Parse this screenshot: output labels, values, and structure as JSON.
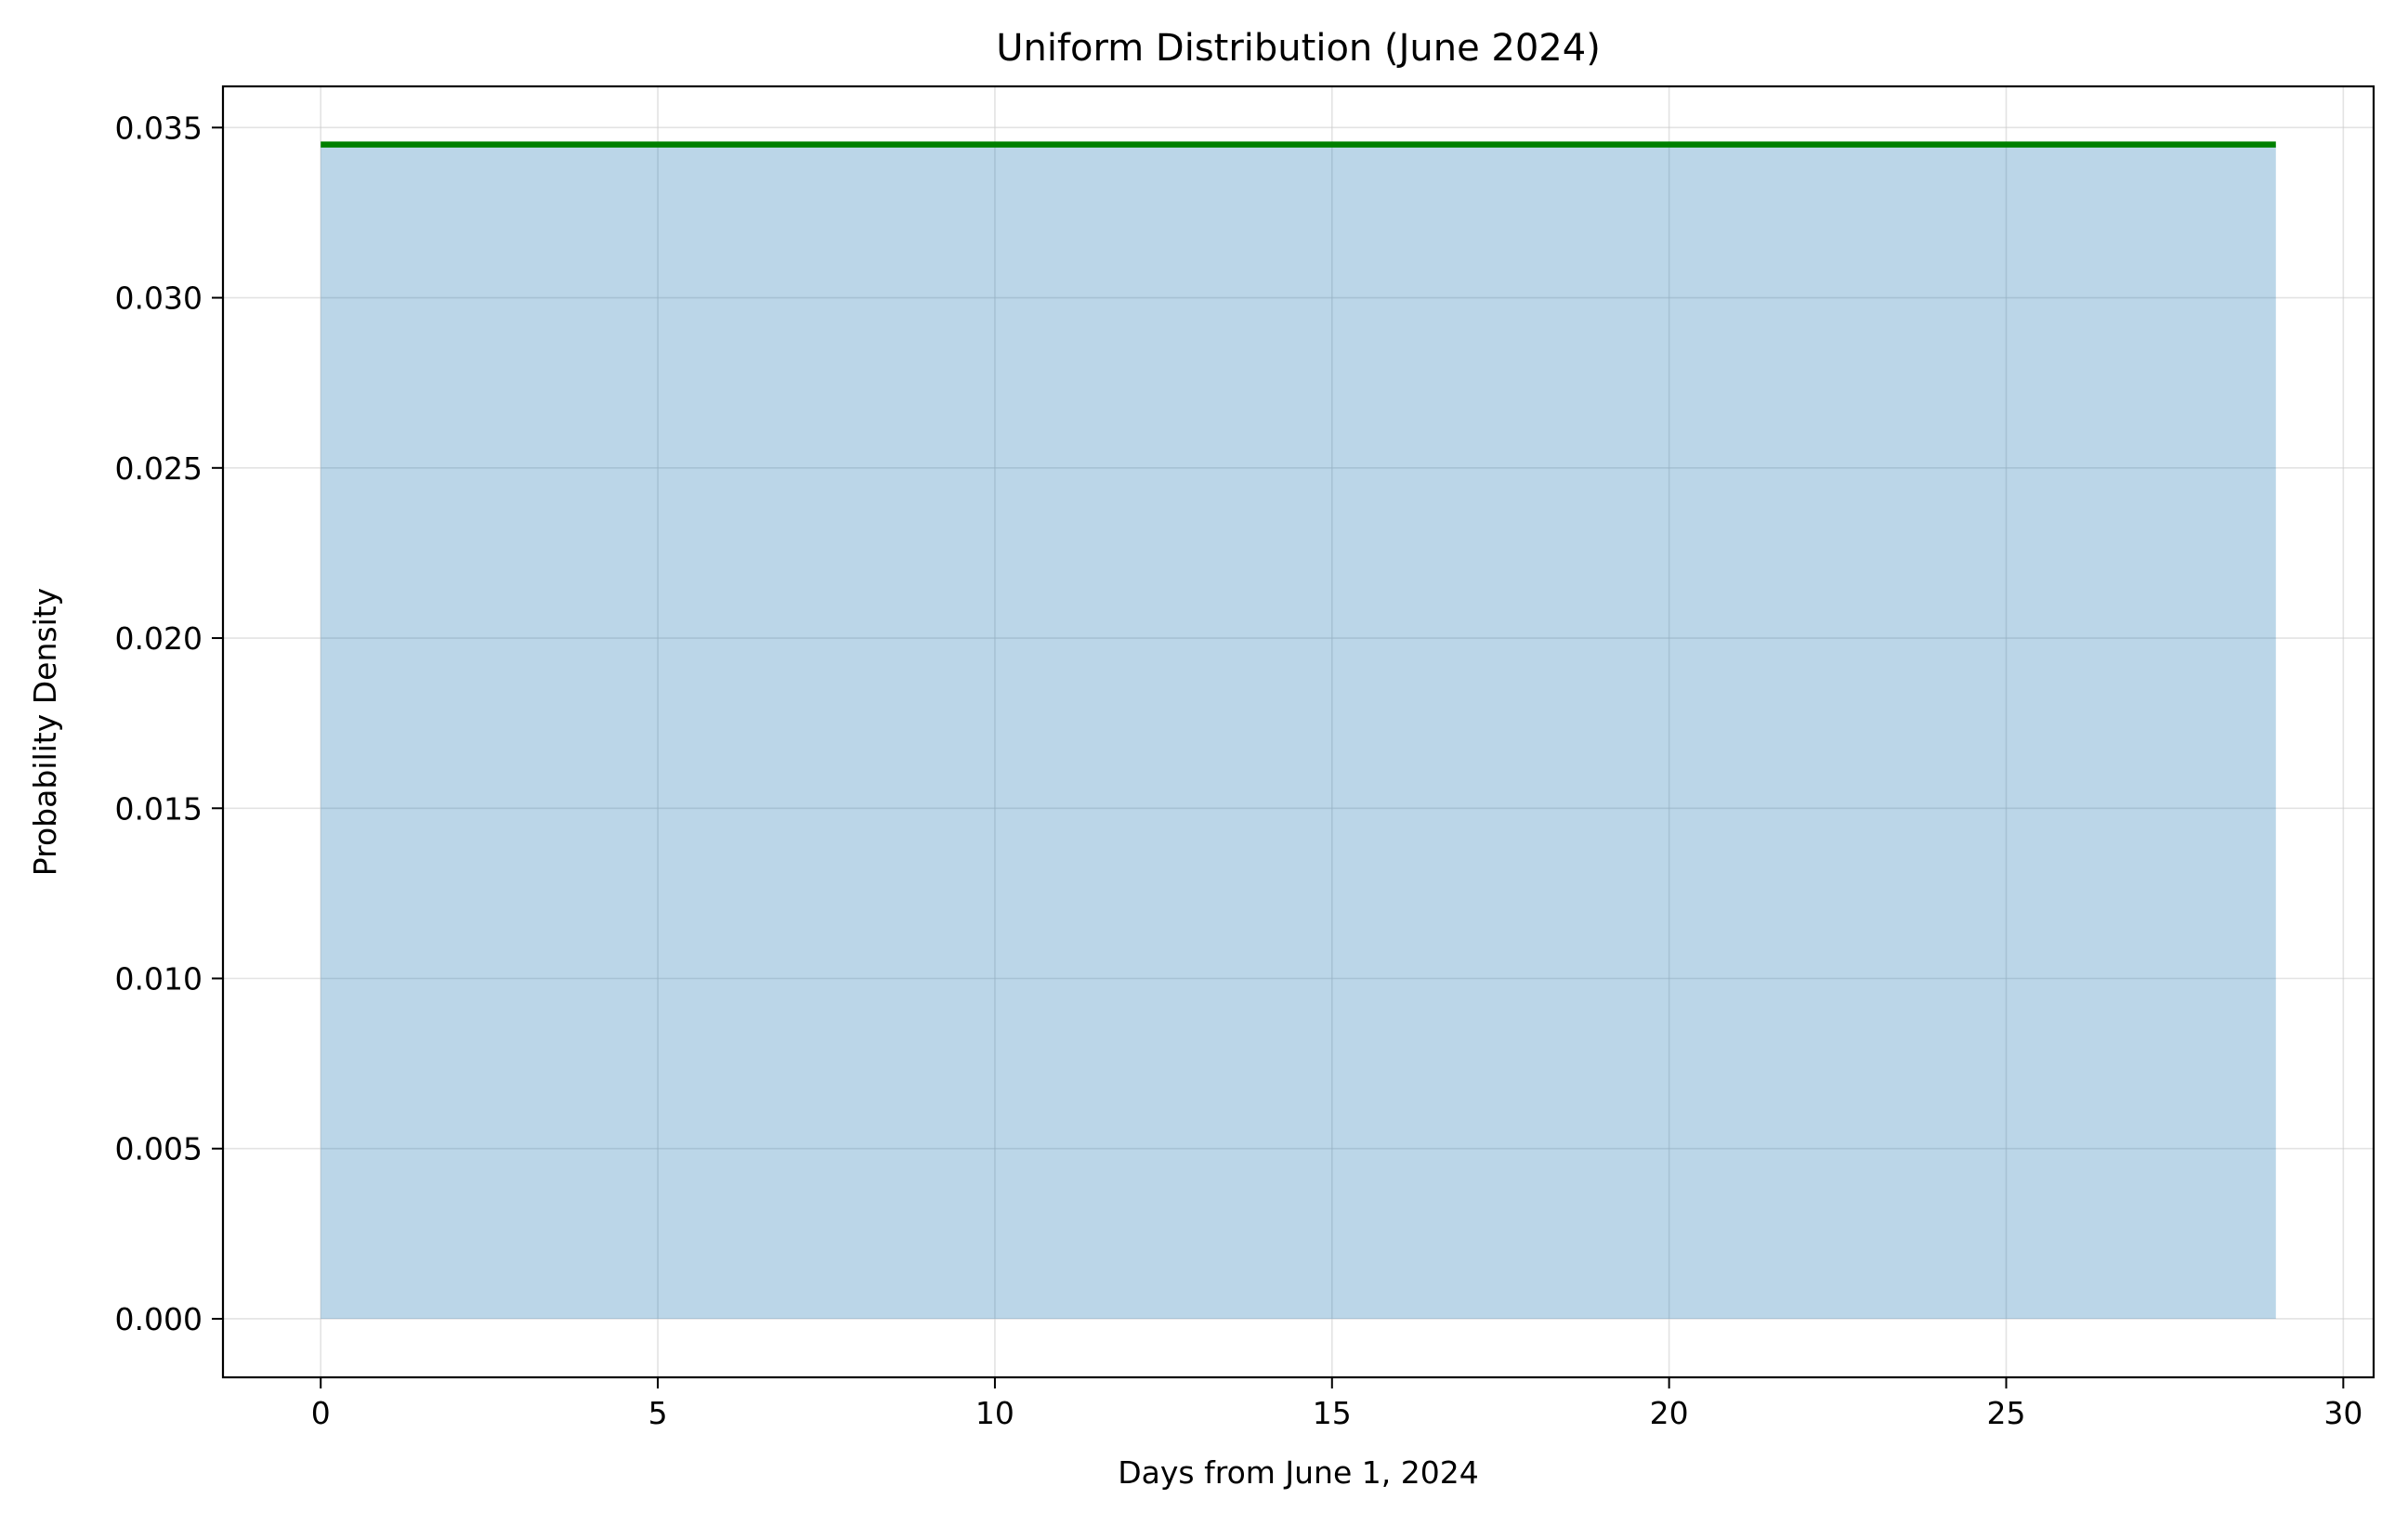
{
  "chart_data": {
    "type": "area",
    "title": "Uniform Distribution (June 2024)",
    "xlabel": "Days from June 1, 2024",
    "ylabel": "Probability Density",
    "xlim": [
      -1.45,
      30.45
    ],
    "ylim": [
      -0.00172,
      0.03621
    ],
    "x_ticks": [
      0,
      5,
      10,
      15,
      20,
      25,
      30
    ],
    "y_ticks": [
      0.0,
      0.005,
      0.01,
      0.015,
      0.02,
      0.025,
      0.03,
      0.035
    ],
    "y_tick_labels": [
      "0.000",
      "0.005",
      "0.010",
      "0.015",
      "0.020",
      "0.025",
      "0.030",
      "0.035"
    ],
    "grid": true,
    "series": [
      {
        "x": [
          0,
          29
        ],
        "y": [
          0.0345,
          0.0345
        ]
      }
    ],
    "colors": {
      "line": "#008000",
      "fill": "#1f77b4",
      "fill_opacity": 0.3,
      "grid": "#cccccc",
      "axes": "#000000"
    }
  }
}
